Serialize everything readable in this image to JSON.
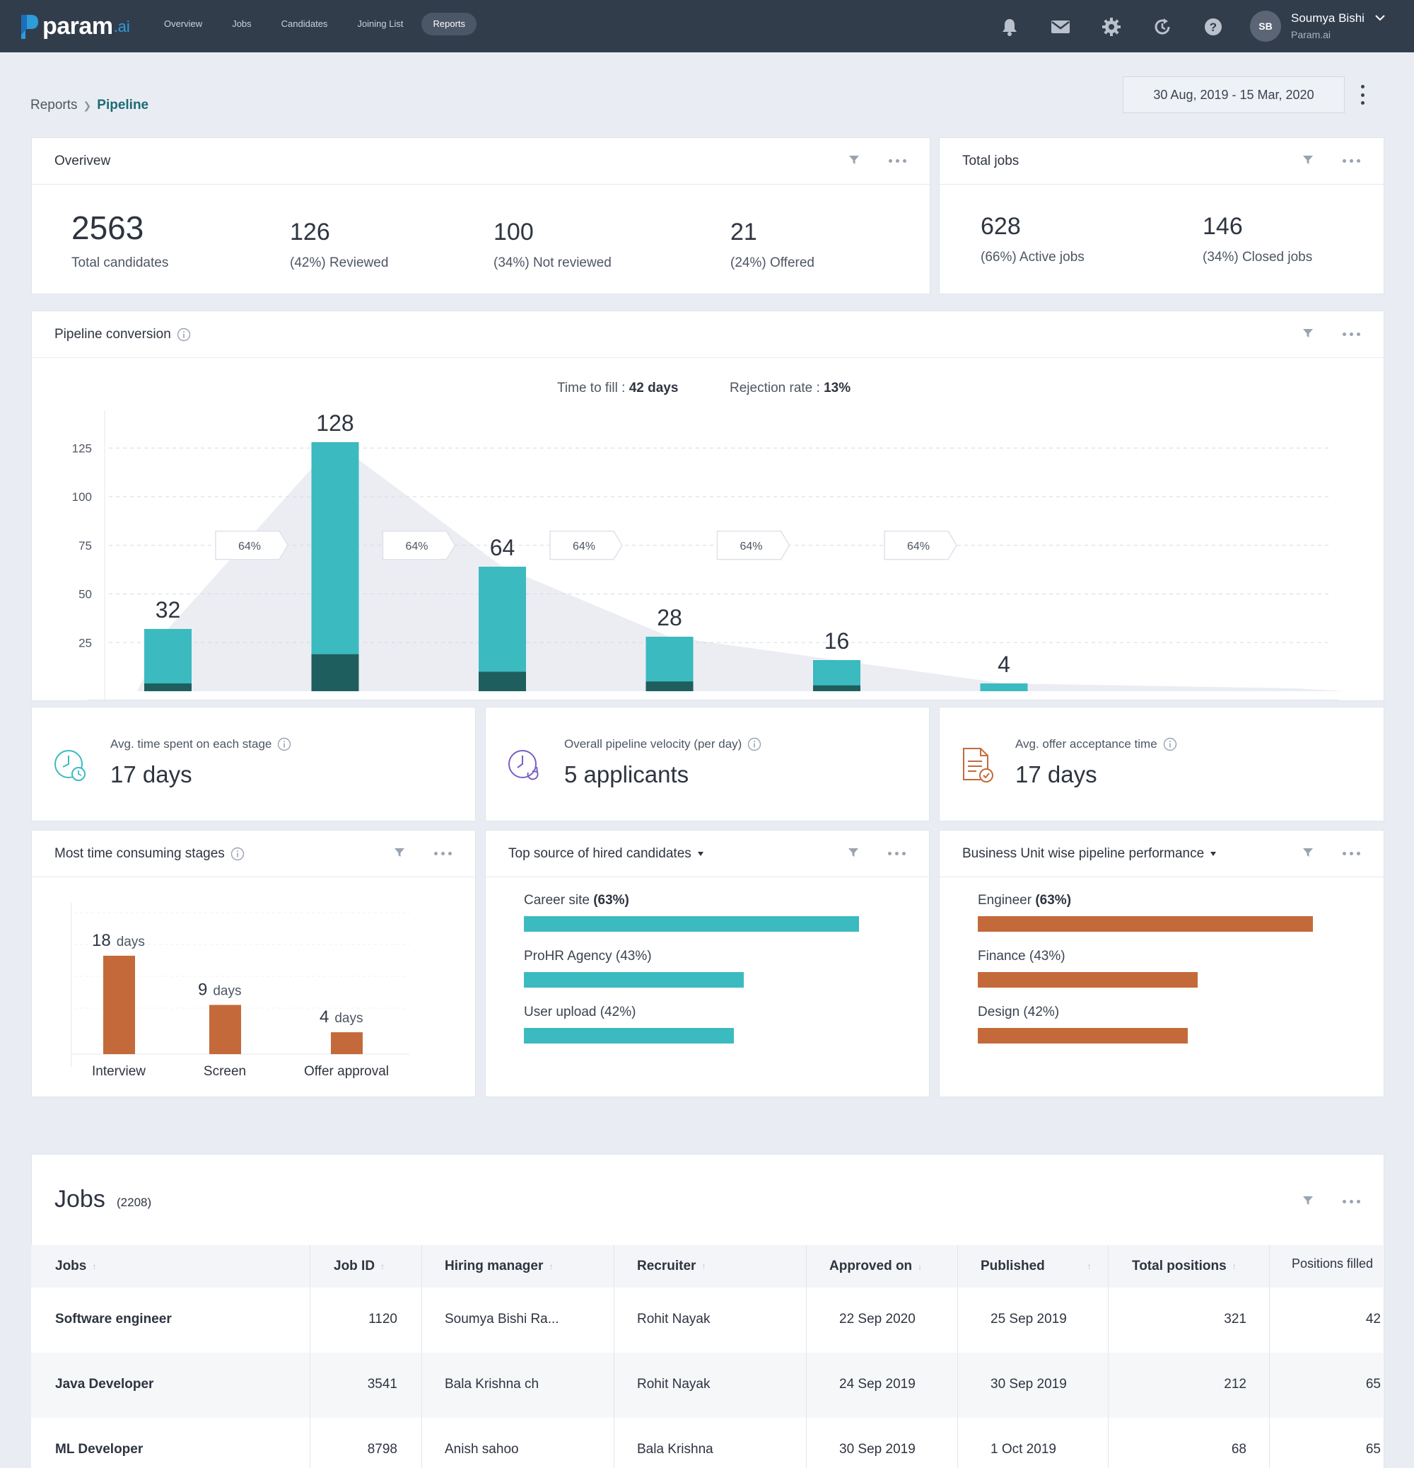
{
  "brand": {
    "name": "param",
    "suffix": ".ai"
  },
  "nav": {
    "items": [
      {
        "label": "Overview",
        "active": false
      },
      {
        "label": "Jobs",
        "active": false
      },
      {
        "label": "Candidates",
        "active": false
      },
      {
        "label": "Joining List",
        "active": false
      },
      {
        "label": "Reports",
        "active": true
      }
    ],
    "icons": [
      "bell-icon",
      "mail-icon",
      "gear-icon",
      "refresh-icon",
      "help-icon"
    ]
  },
  "user": {
    "initials": "SB",
    "name": "Soumya Bishi",
    "org": "Param.ai"
  },
  "breadcrumb": {
    "root": "Reports",
    "current": "Pipeline"
  },
  "date_range": "30 Aug, 2019 - 15 Mar, 2020",
  "overview": {
    "title": "Overivew",
    "total": {
      "value": "2563",
      "label": "Total candidates"
    },
    "reviewed": {
      "value": "126",
      "label": "(42%) Reviewed"
    },
    "not_reviewed": {
      "value": "100",
      "label": "(34%) Not reviewed"
    },
    "offered": {
      "value": "21",
      "label": "(24%) Offered"
    }
  },
  "total_jobs": {
    "title": "Total jobs",
    "active": {
      "value": "628",
      "label": "(66%) Active jobs"
    },
    "closed": {
      "value": "146",
      "label": "(34%) Closed jobs"
    }
  },
  "pipeline": {
    "title": "Pipeline conversion",
    "time_to_fill_label": "Time to fill : ",
    "time_to_fill_value": "42 days",
    "rejection_label": "Rejection rate : ",
    "rejection_value": "13%"
  },
  "chart_data": [
    {
      "type": "bar",
      "ylim": [
        0,
        140
      ],
      "yticks": [
        25,
        50,
        75,
        100,
        125
      ],
      "grid": true,
      "values": [
        32,
        128,
        64,
        28,
        16,
        4
      ],
      "dark_values": [
        4,
        19,
        10,
        5,
        3,
        0
      ],
      "conversion_labels": [
        "64%",
        "64%",
        "64%",
        "64%",
        "64%"
      ],
      "colors": {
        "bar": "#3bbac0",
        "bar_dark": "#1f5e5e",
        "area": "#ebedf3"
      }
    },
    {
      "type": "bar",
      "title": "Most time consuming stages",
      "categories": [
        "Interview",
        "Screen",
        "Offer approval"
      ],
      "values": [
        18,
        9,
        4
      ],
      "unit": "days",
      "ylim": [
        0,
        22
      ],
      "color": "#c46a3a"
    },
    {
      "type": "bar",
      "orientation": "horizontal",
      "title": "Top source of hired candidates",
      "series": [
        {
          "name": "Career site",
          "pct": "(63%)",
          "value": 63,
          "bold": true
        },
        {
          "name": "ProHR Agency",
          "pct": "(43%)",
          "value": 43,
          "bold": false
        },
        {
          "name": "User upload",
          "pct": "(42%)",
          "value": 42,
          "bold": false
        }
      ],
      "color": "#3bbac0"
    },
    {
      "type": "bar",
      "orientation": "horizontal",
      "title": "Business Unit wise pipeline performance",
      "series": [
        {
          "name": "Engineer",
          "pct": "(63%)",
          "value": 63,
          "bold": true
        },
        {
          "name": "Finance",
          "pct": "(43%)",
          "value": 43,
          "bold": false
        },
        {
          "name": "Design",
          "pct": "(42%)",
          "value": 42,
          "bold": false
        }
      ],
      "color": "#c46a3a"
    }
  ],
  "metrics": {
    "avg_stage": {
      "label": "Avg. time spent on each stage",
      "value": "17 days"
    },
    "velocity": {
      "label": "Overall pipeline velocity (per day)",
      "value": "5 applicants"
    },
    "offer_time": {
      "label": "Avg. offer acceptance time",
      "value": "17 days"
    }
  },
  "stages_card": {
    "title": "Most time consuming stages",
    "unit": "days"
  },
  "source_card": {
    "title": "Top source of hired candidates"
  },
  "bu_card": {
    "title": "Business Unit wise pipeline performance"
  },
  "jobs": {
    "title": "Jobs",
    "count": "(2208)",
    "columns": [
      "Jobs",
      "Job ID",
      "Hiring manager",
      "Recruiter",
      "Approved on",
      "Published",
      "Total positions",
      "Positions filled"
    ],
    "rows": [
      [
        "Software engineer",
        "1120",
        "Soumya Bishi Ra...",
        "Rohit Nayak",
        "22 Sep 2020",
        "25 Sep 2019",
        "321",
        "42"
      ],
      [
        "Java Developer",
        "3541",
        "Bala Krishna ch",
        "Rohit Nayak",
        "24 Sep 2019",
        "30 Sep 2019",
        "212",
        "65"
      ],
      [
        "ML Developer",
        "8798",
        "Anish sahoo",
        "Bala Krishna",
        "30 Sep 2019",
        "1 Oct 2019",
        "68",
        "65"
      ]
    ]
  }
}
